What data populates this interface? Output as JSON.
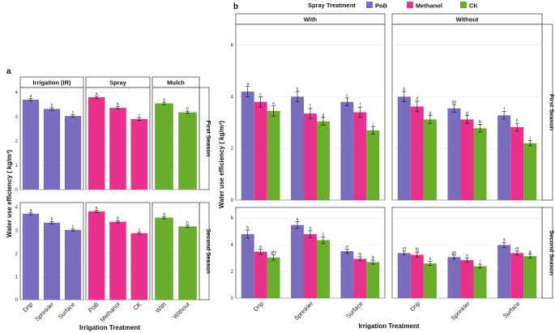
{
  "colors": {
    "PoB": "#7b6dbe",
    "Methanol": "#e8318a",
    "CK": "#6aac2c"
  },
  "legend": {
    "title": "Spray Treatment",
    "entries": [
      "PoB",
      "Methanol",
      "CK"
    ]
  },
  "panel_labels": {
    "a": "a",
    "b": "b"
  },
  "chart_data": [
    {
      "id": "a",
      "type": "bar",
      "xlabel": "Irrigation Treatment",
      "ylabel": "Water use efficiency ( kg/m³)",
      "ylim": [
        0,
        4.2
      ],
      "yticks": [
        0,
        1,
        2,
        3,
        4
      ],
      "facet_columns": [
        "Irrigation (IR)",
        "Spray",
        "Mulch"
      ],
      "facet_rows": [
        "First Season",
        "Second Season"
      ],
      "panels": [
        {
          "row": "First Season",
          "column": "Irrigation (IR)",
          "categories": [
            "Drip",
            "Sprinkler",
            "Surface"
          ],
          "values": [
            3.7,
            3.32,
            3.03
          ],
          "errors": [
            0.05,
            0.05,
            0.05
          ],
          "letters": [
            "a",
            "b",
            "c"
          ],
          "color_key": "PoB"
        },
        {
          "row": "First Season",
          "column": "Spray",
          "categories": [
            "PoB",
            "Methanol",
            "CK"
          ],
          "values": [
            3.8,
            3.36,
            2.9
          ],
          "errors": [
            0.05,
            0.05,
            0.05
          ],
          "letters": [
            "a",
            "b",
            "c"
          ],
          "color_key": "Methanol"
        },
        {
          "row": "First Season",
          "column": "Mulch",
          "categories": [
            "With",
            "Without"
          ],
          "values": [
            3.55,
            3.18
          ],
          "errors": [
            0.05,
            0.05
          ],
          "letters": [
            "a",
            "b"
          ],
          "color_key": "CK"
        },
        {
          "row": "Second Season",
          "column": "Irrigation (IR)",
          "categories": [
            "Drip",
            "Sprinkler",
            "Surface"
          ],
          "values": [
            3.72,
            3.33,
            3.02
          ],
          "errors": [
            0.05,
            0.05,
            0.05
          ],
          "letters": [
            "a",
            "b",
            "c"
          ],
          "color_key": "PoB"
        },
        {
          "row": "Second Season",
          "column": "Spray",
          "categories": [
            "PoB",
            "Methanol",
            "CK"
          ],
          "values": [
            3.82,
            3.37,
            2.88
          ],
          "errors": [
            0.05,
            0.05,
            0.05
          ],
          "letters": [
            "a",
            "b",
            "c"
          ],
          "color_key": "Methanol"
        },
        {
          "row": "Second Season",
          "column": "Mulch",
          "categories": [
            "With",
            "Without"
          ],
          "values": [
            3.55,
            3.17
          ],
          "errors": [
            0.05,
            0.05
          ],
          "letters": [
            "a",
            "b"
          ],
          "color_key": "CK"
        }
      ]
    },
    {
      "id": "b",
      "type": "bar",
      "xlabel": "Irrigation Treatment",
      "ylabel": "Water use efficiency ( kg/m³)",
      "ylim": [
        0,
        6.8
      ],
      "yticks": [
        0,
        2,
        4,
        6
      ],
      "facet_columns": [
        "With",
        "Without"
      ],
      "facet_rows": [
        "First Season",
        "Second Season"
      ],
      "categories": [
        "Drip",
        "Sprinkler",
        "Surface"
      ],
      "series_names": [
        "PoB",
        "Methanol",
        "CK"
      ],
      "panels": [
        {
          "row": "First Season",
          "column": "With",
          "values": [
            [
              4.2,
              3.8,
              3.45
            ],
            [
              4.0,
              3.35,
              3.05
            ],
            [
              3.8,
              3.4,
              2.7
            ]
          ],
          "errors": [
            [
              0.2,
              0.2,
              0.2
            ],
            [
              0.2,
              0.2,
              0.15
            ],
            [
              0.15,
              0.2,
              0.15
            ]
          ],
          "letters": [
            [
              "a",
              "c",
              "e"
            ],
            [
              "b",
              "f",
              "g"
            ],
            [
              "c",
              "f",
              "i"
            ]
          ]
        },
        {
          "row": "First Season",
          "column": "Without",
          "values": [
            [
              4.0,
              3.62,
              3.12
            ],
            [
              3.55,
              3.12,
              2.78
            ],
            [
              3.28,
              2.82,
              2.2
            ]
          ],
          "errors": [
            [
              0.2,
              0.2,
              0.15
            ],
            [
              0.15,
              0.15,
              0.15
            ],
            [
              0.15,
              0.15,
              0.1
            ]
          ],
          "letters": [
            [
              "b",
              "d",
              "g"
            ],
            [
              "de",
              "g",
              "hi"
            ],
            [
              "f",
              "h",
              "j"
            ]
          ]
        },
        {
          "row": "Second Season",
          "column": "With",
          "values": [
            [
              4.8,
              3.48,
              3.05
            ],
            [
              5.48,
              4.8,
              4.35
            ],
            [
              3.52,
              2.95,
              2.7
            ]
          ],
          "errors": [
            [
              0.3,
              0.2,
              0.2
            ],
            [
              0.25,
              0.25,
              0.25
            ],
            [
              0.15,
              0.15,
              0.15
            ]
          ],
          "letters": [
            [
              "b",
              "e",
              "ghi"
            ],
            [
              "a",
              "b",
              "c"
            ],
            [
              "e",
              "hi",
              "jk"
            ]
          ]
        },
        {
          "row": "Second Season",
          "column": "Without",
          "values": [
            [
              3.38,
              3.25,
              2.6
            ],
            [
              3.08,
              2.85,
              2.4
            ],
            [
              3.98,
              3.38,
              3.15
            ]
          ],
          "errors": [
            [
              0.15,
              0.2,
              0.15
            ],
            [
              0.15,
              0.15,
              0.15
            ],
            [
              0.2,
              0.15,
              0.15
            ]
          ],
          "letters": [
            [
              "ef",
              "fg",
              "k"
            ],
            [
              "gh",
              "ij",
              "l"
            ],
            [
              "d",
              "ef",
              "g"
            ]
          ]
        }
      ]
    }
  ]
}
